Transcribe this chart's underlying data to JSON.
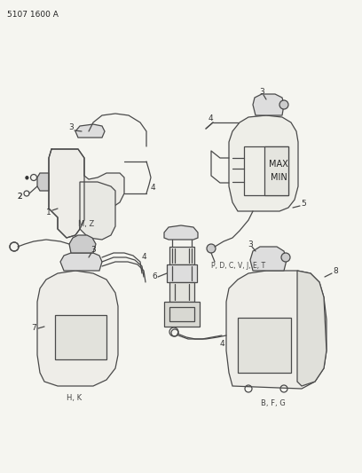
{
  "background_color": "#f5f5f0",
  "line_color": "#4a4a4a",
  "text_color": "#333333",
  "fig_width": 4.08,
  "fig_height": 5.33,
  "dpi": 100,
  "top_code": "5107 1600 A",
  "label_mz": "M, Z",
  "label_hk": "H, K",
  "label_pdcvjet": "P, D, C, V, J, E, T",
  "label_bfg": "B, F, G"
}
